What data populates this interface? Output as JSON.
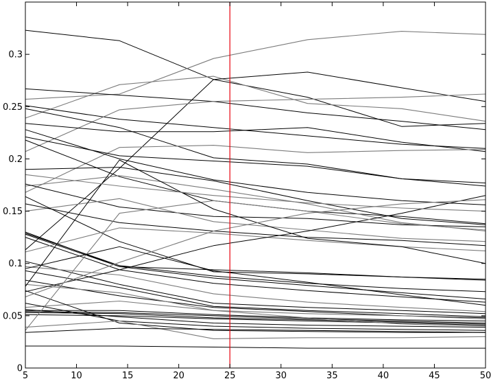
{
  "chart_data": {
    "type": "line",
    "title": "",
    "xlabel": "",
    "ylabel": "",
    "xlim": [
      5,
      50
    ],
    "ylim": [
      0,
      0.35
    ],
    "grid": false,
    "x": [
      5,
      14.2,
      23.4,
      32.6,
      41.8,
      50
    ],
    "xticks": [
      5,
      10,
      15,
      20,
      25,
      30,
      35,
      40,
      45,
      50
    ],
    "xtick_labels": [
      "5",
      "10",
      "15",
      "20",
      "25",
      "30",
      "35",
      "40",
      "45",
      "50"
    ],
    "yticks": [
      0,
      0.05,
      0.1,
      0.15,
      0.2,
      0.25,
      0.3
    ],
    "ytick_labels": [
      "0",
      "0.05",
      "0.1",
      "0.15",
      "0.2",
      "0.25",
      "0.3"
    ],
    "vline": {
      "x": 25,
      "color": "#e8000b"
    },
    "colors": {
      "dark": "#000000",
      "gray": "#7a7a7a"
    },
    "series": [
      {
        "color": "dark",
        "values": [
          0.323,
          0.313,
          0.276,
          0.259,
          0.231,
          0.234
        ]
      },
      {
        "color": "gray",
        "values": [
          0.239,
          0.271,
          0.279,
          0.253,
          0.248,
          0.236
        ]
      },
      {
        "color": "gray",
        "values": [
          0.257,
          0.262,
          0.296,
          0.314,
          0.322,
          0.319
        ]
      },
      {
        "color": "dark",
        "values": [
          0.267,
          0.261,
          0.255,
          0.244,
          0.236,
          0.228
        ]
      },
      {
        "color": "dark",
        "values": [
          0.251,
          0.238,
          0.23,
          0.222,
          0.214,
          0.21
        ]
      },
      {
        "color": "dark",
        "values": [
          0.113,
          0.191,
          0.276,
          0.283,
          0.268,
          0.255
        ]
      },
      {
        "color": "gray",
        "values": [
          0.207,
          0.247,
          0.255,
          0.257,
          0.259,
          0.262
        ]
      },
      {
        "color": "dark",
        "values": [
          0.234,
          0.226,
          0.226,
          0.23,
          0.216,
          0.207
        ]
      },
      {
        "color": "dark",
        "values": [
          0.248,
          0.23,
          0.201,
          0.195,
          0.181,
          0.177
        ]
      },
      {
        "color": "gray",
        "values": [
          0.168,
          0.211,
          0.213,
          0.206,
          0.208,
          0.209
        ]
      },
      {
        "color": "dark",
        "values": [
          0.228,
          0.2,
          0.18,
          0.168,
          0.16,
          0.156
        ]
      },
      {
        "color": "dark",
        "values": [
          0.221,
          0.203,
          0.198,
          0.193,
          0.181,
          0.174
        ]
      },
      {
        "color": "dark",
        "values": [
          0.19,
          0.192,
          0.179,
          0.16,
          0.143,
          0.137
        ]
      },
      {
        "color": "dark",
        "values": [
          0.218,
          0.183,
          0.16,
          0.15,
          0.145,
          0.138
        ]
      },
      {
        "color": "gray",
        "values": [
          0.174,
          0.184,
          0.171,
          0.157,
          0.139,
          0.131
        ]
      },
      {
        "color": "dark",
        "values": [
          0.176,
          0.154,
          0.145,
          0.143,
          0.137,
          0.135
        ]
      },
      {
        "color": "gray",
        "values": [
          0.15,
          0.162,
          0.14,
          0.132,
          0.124,
          0.121
        ]
      },
      {
        "color": "dark",
        "values": [
          0.157,
          0.139,
          0.131,
          0.125,
          0.122,
          0.117
        ]
      },
      {
        "color": "dark",
        "values": [
          0.164,
          0.121,
          0.092,
          0.09,
          0.087,
          0.085
        ]
      },
      {
        "color": "dark",
        "values": [
          0.129,
          0.098,
          0.088,
          0.081,
          0.076,
          0.073
        ]
      },
      {
        "color": "dark",
        "values": [
          0.13,
          0.097,
          0.086,
          0.079,
          0.072,
          0.066
        ]
      },
      {
        "color": "dark",
        "values": [
          0.125,
          0.094,
          0.081,
          0.074,
          0.068,
          0.063
        ]
      },
      {
        "color": "dark",
        "values": [
          0.102,
          0.08,
          0.062,
          0.058,
          0.055,
          0.052
        ]
      },
      {
        "color": "dark",
        "values": [
          0.093,
          0.077,
          0.059,
          0.055,
          0.052,
          0.049
        ]
      },
      {
        "color": "dark",
        "values": [
          0.084,
          0.069,
          0.058,
          0.054,
          0.05,
          0.048
        ]
      },
      {
        "color": "gray",
        "values": [
          0.097,
          0.089,
          0.071,
          0.063,
          0.058,
          0.054
        ]
      },
      {
        "color": "gray",
        "values": [
          0.058,
          0.064,
          0.055,
          0.052,
          0.05,
          0.047
        ]
      },
      {
        "color": "dark",
        "values": [
          0.055,
          0.055,
          0.051,
          0.048,
          0.046,
          0.045
        ]
      },
      {
        "color": "dark",
        "values": [
          0.054,
          0.053,
          0.05,
          0.047,
          0.045,
          0.043
        ]
      },
      {
        "color": "dark",
        "values": [
          0.053,
          0.052,
          0.048,
          0.046,
          0.044,
          0.042
        ]
      },
      {
        "color": "dark",
        "values": [
          0.051,
          0.05,
          0.047,
          0.045,
          0.043,
          0.041
        ]
      },
      {
        "color": "dark",
        "values": [
          0.056,
          0.049,
          0.043,
          0.041,
          0.04,
          0.039
        ]
      },
      {
        "color": "dark",
        "values": [
          0.062,
          0.045,
          0.04,
          0.038,
          0.037,
          0.036
        ]
      },
      {
        "color": "dark",
        "values": [
          0.074,
          0.043,
          0.036,
          0.035,
          0.034,
          0.034
        ]
      },
      {
        "color": "gray",
        "values": [
          0.039,
          0.045,
          0.028,
          0.029,
          0.029,
          0.03
        ]
      },
      {
        "color": "dark",
        "values": [
          0.034,
          0.038,
          0.037,
          0.036,
          0.035,
          0.034
        ]
      },
      {
        "color": "dark",
        "values": [
          0.021,
          0.021,
          0.02,
          0.019,
          0.019,
          0.019
        ]
      },
      {
        "color": "gray",
        "values": [
          0.08,
          0.072,
          0.055,
          0.048,
          0.042,
          0.04
        ]
      },
      {
        "color": "dark",
        "values": [
          0.128,
          0.097,
          0.094,
          0.091,
          0.087,
          0.084
        ]
      },
      {
        "color": "gray",
        "values": [
          0.111,
          0.134,
          0.129,
          0.122,
          0.116,
          0.112
        ]
      },
      {
        "color": "dark",
        "values": [
          0.073,
          0.094,
          0.117,
          0.131,
          0.148,
          0.165
        ]
      },
      {
        "color": "gray",
        "values": [
          0.036,
          0.148,
          0.16,
          0.15,
          0.138,
          0.132
        ]
      },
      {
        "color": "dark",
        "values": [
          0.078,
          0.199,
          0.152,
          0.124,
          0.116,
          0.1
        ]
      },
      {
        "color": "gray",
        "values": [
          0.068,
          0.101,
          0.131,
          0.148,
          0.157,
          0.161
        ]
      },
      {
        "color": "dark",
        "values": [
          0.095,
          0.116,
          0.093,
          0.082,
          0.07,
          0.06
        ]
      },
      {
        "color": "gray",
        "values": [
          0.185,
          0.174,
          0.165,
          0.158,
          0.153,
          0.15
        ]
      }
    ]
  }
}
